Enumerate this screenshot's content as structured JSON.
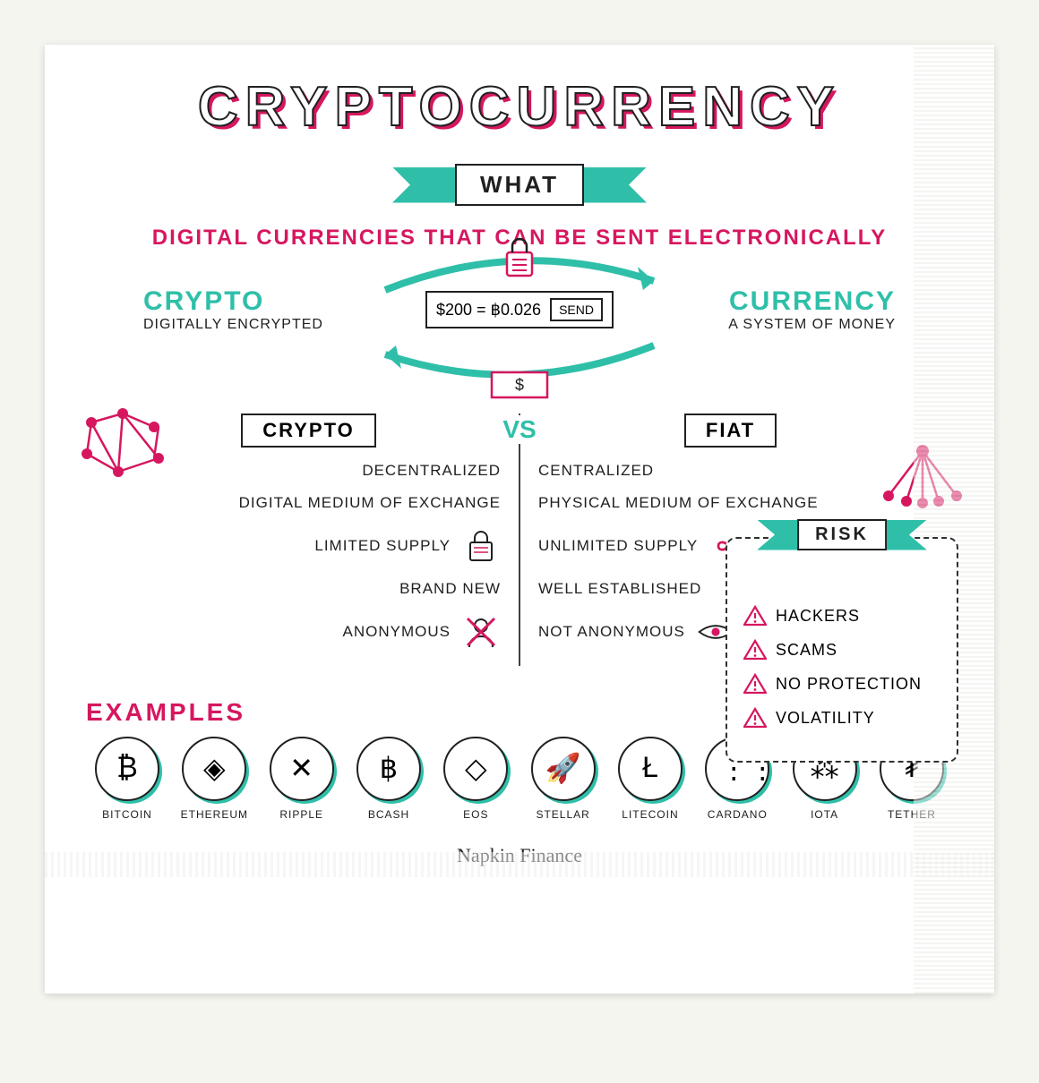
{
  "colors": {
    "teal": "#2fbfa9",
    "magenta": "#d6175f",
    "ink": "#202020",
    "paper": "#ffffff",
    "background": "#f5f5f0"
  },
  "title": "CRYPTOCURRENCY",
  "what": {
    "banner_label": "WHAT",
    "subtitle": "DIGITAL CURRENCIES THAT CAN BE SENT ELECTRONICALLY"
  },
  "split": {
    "left_head": "CRYPTO",
    "left_sub": "DIGITALLY ENCRYPTED",
    "right_head": "CURRENCY",
    "right_sub": "A SYSTEM OF MONEY",
    "exchange_text": "$200 = ฿0.026",
    "send_label": "SEND"
  },
  "compare": {
    "left_tag": "CRYPTO",
    "right_tag": "FIAT",
    "vs": "VS",
    "crypto_items": [
      "DECENTRALIZED",
      "DIGITAL MEDIUM OF EXCHANGE",
      "LIMITED SUPPLY",
      "BRAND NEW",
      "ANONYMOUS"
    ],
    "fiat_items": [
      "CENTRALIZED",
      "PHYSICAL MEDIUM OF EXCHANGE",
      "UNLIMITED SUPPLY",
      "WELL ESTABLISHED",
      "NOT ANONYMOUS"
    ]
  },
  "risk": {
    "banner_label": "RISK",
    "items": [
      "HACKERS",
      "SCAMS",
      "NO PROTECTION",
      "VOLATILITY"
    ]
  },
  "examples": {
    "label": "EXAMPLES",
    "coins": [
      {
        "name": "BITCOIN",
        "glyph": "₿"
      },
      {
        "name": "ETHEREUM",
        "glyph": "◈"
      },
      {
        "name": "RIPPLE",
        "glyph": "✕"
      },
      {
        "name": "BCASH",
        "glyph": "฿"
      },
      {
        "name": "EOS",
        "glyph": "◇"
      },
      {
        "name": "STELLAR",
        "glyph": "🚀"
      },
      {
        "name": "LITECOIN",
        "glyph": "Ł"
      },
      {
        "name": "CARDANO",
        "glyph": "⋮⋮"
      },
      {
        "name": "IOTA",
        "glyph": "⁂"
      },
      {
        "name": "TETHER",
        "glyph": "₮"
      }
    ]
  },
  "footer": "Napkin Finance"
}
